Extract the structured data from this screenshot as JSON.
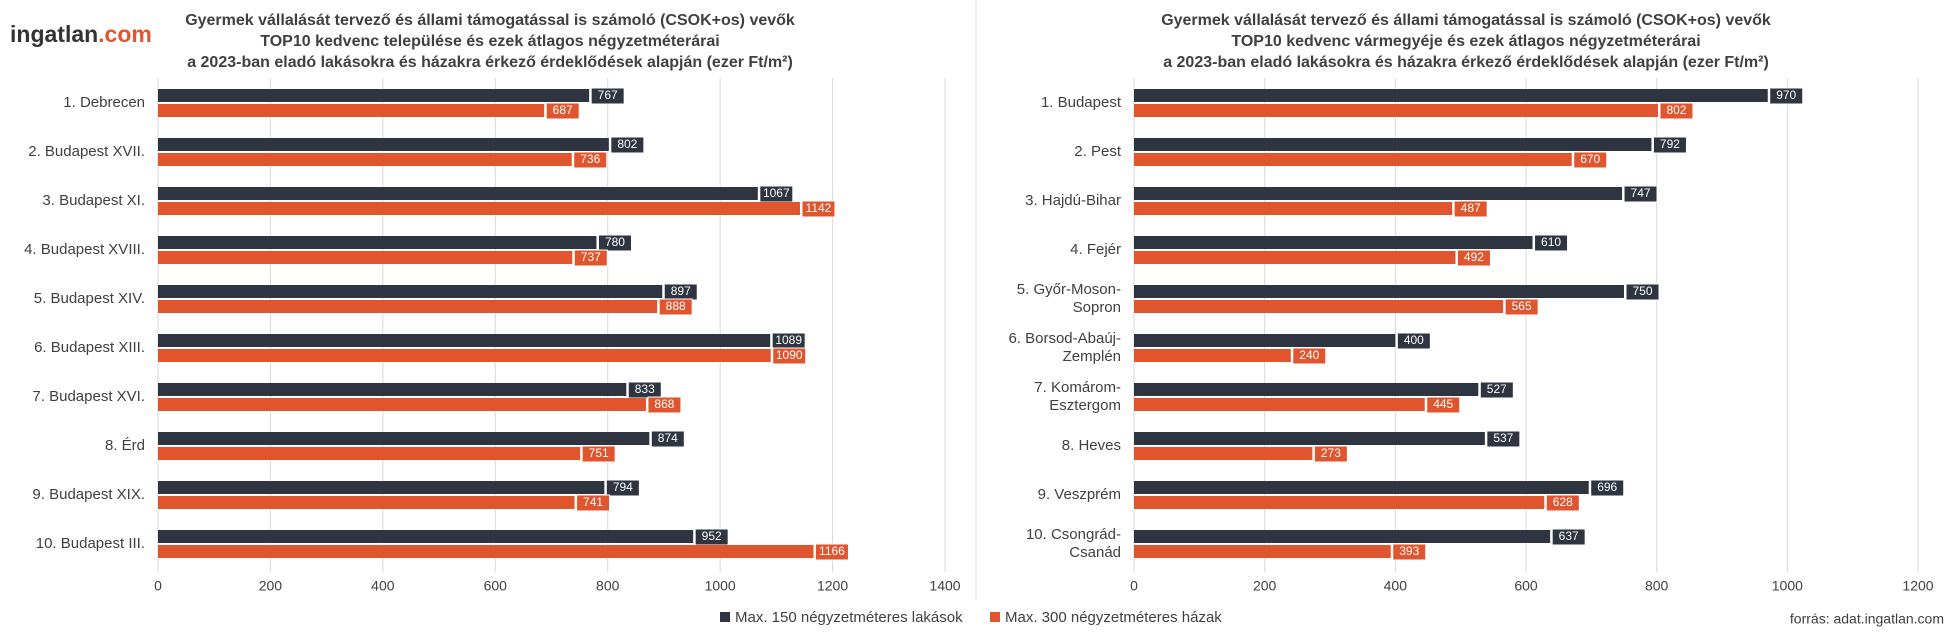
{
  "logo": {
    "text": "ingatlan",
    "suffix": ".com"
  },
  "source": "forrás: adat.ingatlan.com",
  "chart_data": [
    {
      "type": "bar",
      "orientation": "horizontal",
      "title": [
        "Gyermek vállalását tervező és állami támogatással is számoló (CSOK+os) vevők",
        "TOP10 kedvenc települése és ezek  átlagos négyzetméterárai",
        "a 2023-ban eladó lakásokra és házakra érkező érdeklődések alapján (ezer Ft/m²)"
      ],
      "categories": [
        "1. Debrecen",
        "2. Budapest XVII.",
        "3. Budapest XI.",
        "4. Budapest XVIII.",
        "5. Budapest XIV.",
        "6. Budapest XIII.",
        "7. Budapest XVI.",
        "8. Érd",
        "9. Budapest XIX.",
        "10. Budapest III."
      ],
      "series": [
        {
          "name": "Max. 150 négyzetméteres lakások",
          "color": "#2e3440",
          "values": [
            767,
            802,
            1067,
            780,
            897,
            1089,
            833,
            874,
            794,
            952
          ]
        },
        {
          "name": "Max. 300 négyzetméteres házak",
          "color": "#e0552e",
          "values": [
            687,
            736,
            1142,
            737,
            888,
            1090,
            868,
            751,
            741,
            1166
          ]
        }
      ],
      "xlim": [
        0,
        1400
      ],
      "xticks": [
        0,
        200,
        400,
        600,
        800,
        1000,
        1200,
        1400
      ],
      "grid": true,
      "legend": "bottom"
    },
    {
      "type": "bar",
      "orientation": "horizontal",
      "title": [
        "Gyermek vállalását tervező és állami támogatással is számoló (CSOK+os) vevők",
        "TOP10 kedvenc vármegyéje és ezek  átlagos négyzetméterárai",
        "a 2023-ban eladó lakásokra és házakra érkező érdeklődések alapján (ezer Ft/m²)"
      ],
      "categories": [
        "1. Budapest",
        "2. Pest",
        "3. Hajdú-Bihar",
        "4. Fejér",
        "5. Győr-Moson-\nSopron",
        "6. Borsod-Abaúj-\nZemplén",
        "7. Komárom-\nEsztergom",
        "8. Heves",
        "9. Veszprém",
        "10. Csongrád-\nCsanád"
      ],
      "series": [
        {
          "color": "#2e3440",
          "values": [
            970,
            792,
            747,
            610,
            750,
            400,
            527,
            537,
            696,
            637
          ]
        },
        {
          "color": "#e0552e",
          "values": [
            802,
            670,
            487,
            492,
            565,
            240,
            445,
            273,
            628,
            393
          ]
        }
      ],
      "xlim": [
        0,
        1200
      ],
      "xticks": [
        0,
        200,
        400,
        600,
        800,
        1000,
        1200
      ],
      "grid": true
    }
  ]
}
